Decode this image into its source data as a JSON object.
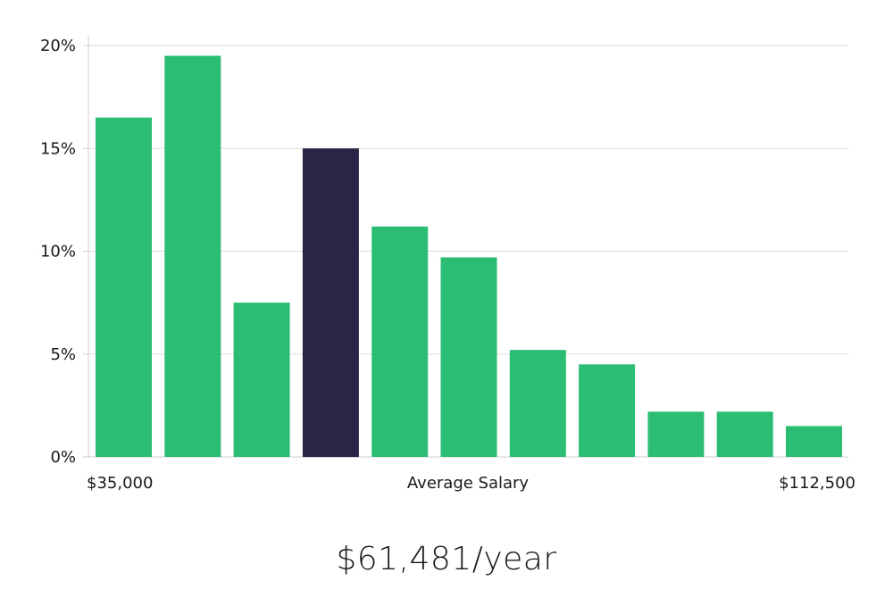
{
  "chart_data": {
    "type": "bar",
    "title": "",
    "xlabel": "Average Salary",
    "ylabel": "",
    "x_min_label": "$35,000",
    "x_max_label": "$112,500",
    "ylim": [
      0,
      20
    ],
    "yticks": [
      0,
      5,
      10,
      15,
      20
    ],
    "ytick_labels": [
      "0%",
      "5%",
      "10%",
      "15%",
      "20%"
    ],
    "grid": true,
    "values": [
      16.5,
      19.5,
      7.5,
      15.0,
      11.2,
      9.7,
      5.2,
      4.5,
      2.2,
      2.2,
      1.5
    ],
    "highlight_index": 3,
    "colors": {
      "bar": "#2bbd74",
      "highlight": "#2a2547",
      "grid": "#dedede",
      "axis": "#cfcfcf"
    }
  },
  "summary": {
    "salary": "$61,481/year"
  }
}
